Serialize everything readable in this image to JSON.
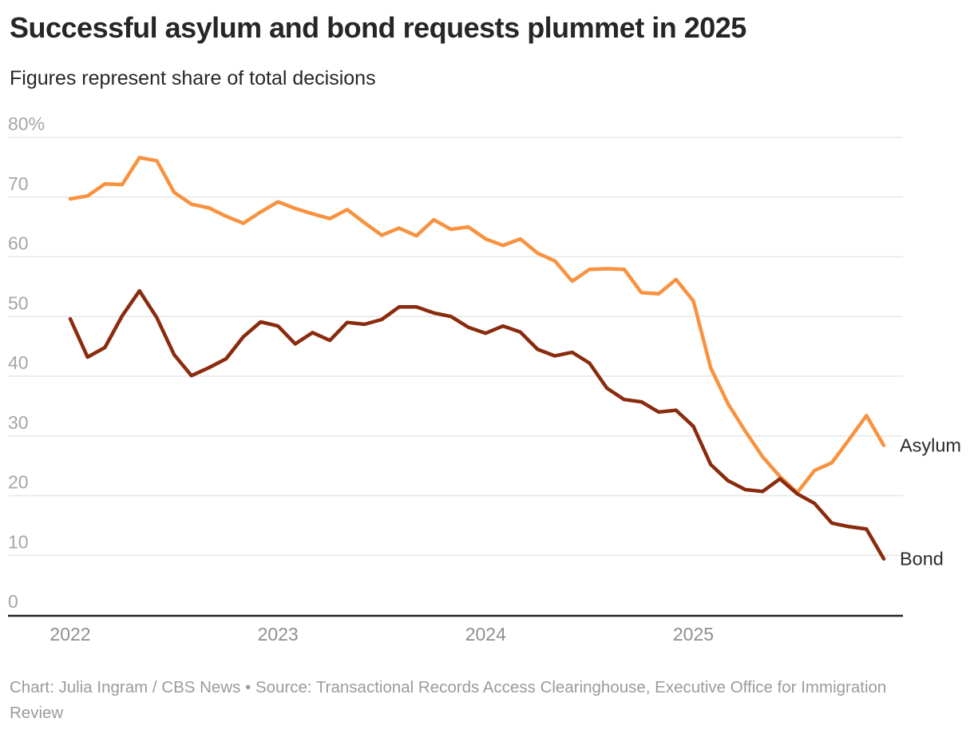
{
  "header": {
    "title": "Successful asylum and bond requests plummet in 2025",
    "subtitle": "Figures represent share of total decisions"
  },
  "footer": {
    "credit": "Chart: Julia Ingram / CBS News • Source: Transactional Records Access Clearinghouse, Executive Office for Immigration Review"
  },
  "colors": {
    "asylum_line": "#F8923F",
    "bond_line": "#8A2B0E",
    "gridline": "#e7e7e7",
    "axis_line": "#222222",
    "y_tick_label": "#a6a6a6",
    "x_tick_label": "#8f8f8f",
    "end_label": "#2b2b2b",
    "title_text": "#262626",
    "footer_text": "#9b9b9b"
  },
  "chart_data": {
    "type": "line",
    "title": "Successful asylum and bond requests plummet in 2025",
    "subtitle": "Figures represent share of total decisions",
    "unit": "percent share of total decisions",
    "frequency": "monthly",
    "grid": true,
    "ylim": [
      0,
      80
    ],
    "y_ticks": [
      0,
      10,
      20,
      30,
      40,
      50,
      60,
      70,
      80
    ],
    "y_tick_top_label": "80%",
    "x_tick_labels": [
      "2022",
      "2023",
      "2024",
      "2025"
    ],
    "year_tick_indices": [
      0,
      12,
      24,
      36
    ],
    "n_points": 48,
    "series": [
      {
        "name": "Asylum",
        "color": "#F8923F",
        "values": [
          69.7,
          70.2,
          72.2,
          72.1,
          76.6,
          76.1,
          70.8,
          68.8,
          68.2,
          66.8,
          65.6,
          67.5,
          69.2,
          68.1,
          67.2,
          66.4,
          67.9,
          65.7,
          63.6,
          64.8,
          63.5,
          66.2,
          64.6,
          65.0,
          63.0,
          61.9,
          63.0,
          60.6,
          59.3,
          55.9,
          57.9,
          58.0,
          57.9,
          54.0,
          53.8,
          56.2,
          52.6,
          41.4,
          35.4,
          30.8,
          26.5,
          23.2,
          20.5,
          24.2,
          25.5,
          29.4,
          33.4,
          28.4
        ]
      },
      {
        "name": "Bond",
        "color": "#8A2B0E",
        "values": [
          49.6,
          43.2,
          44.8,
          50.1,
          54.3,
          49.8,
          43.6,
          40.1,
          41.4,
          42.9,
          46.6,
          49.1,
          48.4,
          45.4,
          47.3,
          46.0,
          49.0,
          48.7,
          49.5,
          51.6,
          51.6,
          50.6,
          50.0,
          48.2,
          47.2,
          48.4,
          47.4,
          44.5,
          43.4,
          44.0,
          42.2,
          38.0,
          36.1,
          35.7,
          34.0,
          34.3,
          31.6,
          25.2,
          22.5,
          21.0,
          20.7,
          22.8,
          20.3,
          18.7,
          15.4,
          14.8,
          14.4,
          9.4
        ]
      }
    ],
    "legend_position": "line-end labels at right"
  }
}
